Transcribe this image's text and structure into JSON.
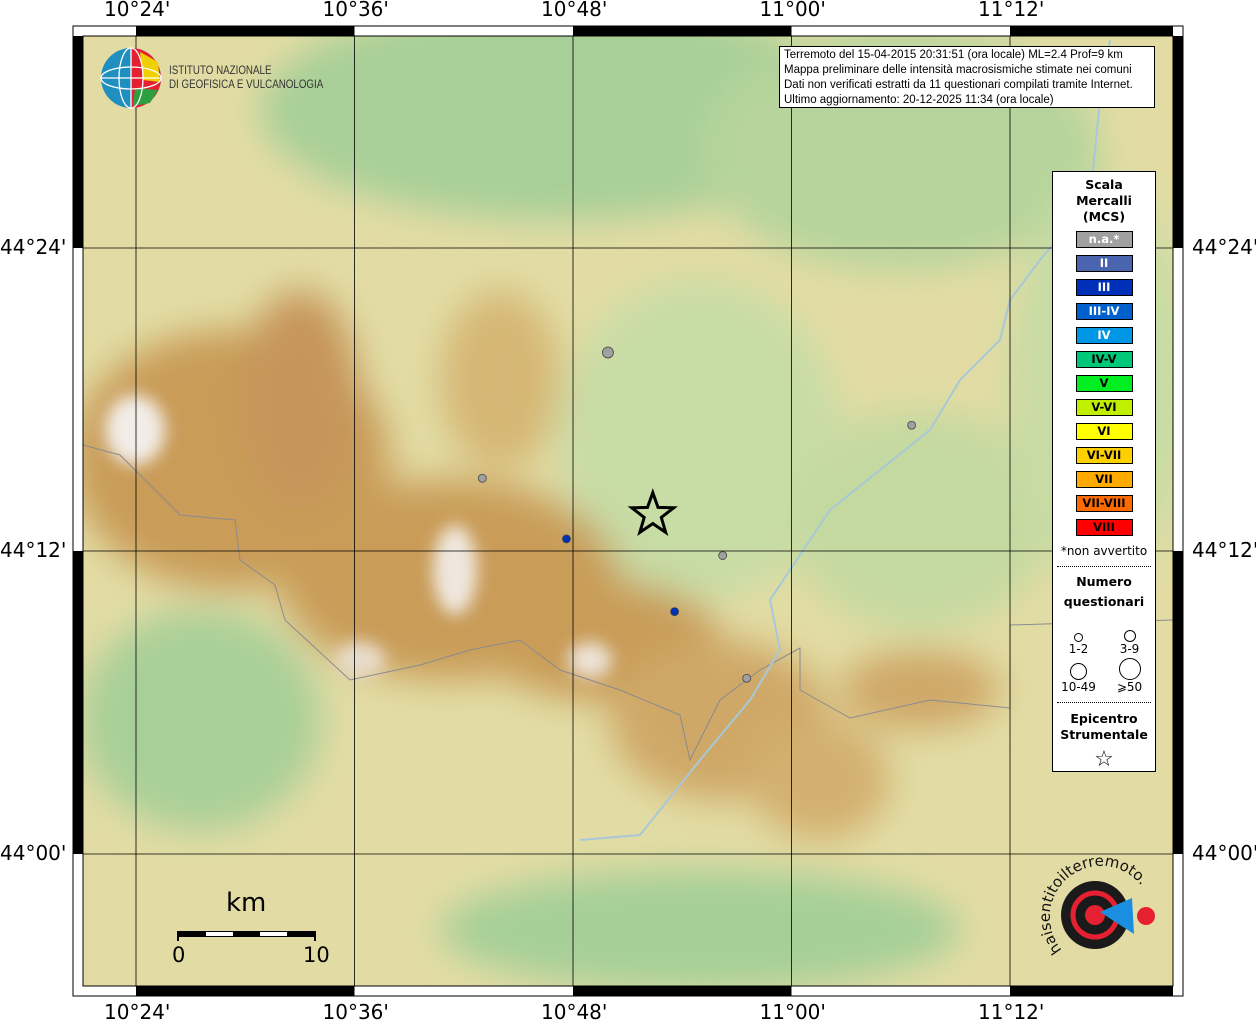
{
  "header": {
    "lines": [
      "Terremoto del 15-04-2015 20:31:51 (ora locale) ML=2.4 Prof=9 km",
      "Mappa preliminare delle intensità macrosismiche stimate nei comuni",
      "Dati non verificati estratti da 11 questionari compilati tramite Internet.",
      "Ultimo aggiornamento: 20-12-2025 11:34 (ora locale)"
    ]
  },
  "logos": {
    "ingv": {
      "line1": "ISTITUTO NAZIONALE",
      "line2": "DI GEOFISICA E VULCANOLOGIA"
    },
    "hsit": "www.haisentitoilterremoto.it"
  },
  "axes": {
    "lon_labels": [
      "10°24'",
      "10°36'",
      "10°48'",
      "11°00'",
      "11°12'"
    ],
    "lat_labels": [
      "44°24'",
      "44°12'",
      "44°00'"
    ],
    "lon_values": [
      10.4,
      10.6,
      10.8,
      11.0,
      11.2
    ],
    "lat_values": [
      44.4,
      44.2,
      44.0
    ]
  },
  "legend": {
    "title": [
      "Scala",
      "Mercalli",
      "(MCS)"
    ],
    "classes": [
      {
        "label": "n.a.*",
        "color": "#a0a0a0",
        "text": "#ffffff"
      },
      {
        "label": "II",
        "color": "#4a64b0",
        "text": "#ffffff"
      },
      {
        "label": "III",
        "color": "#0030b8",
        "text": "#ffffff"
      },
      {
        "label": "III-IV",
        "color": "#0060cc",
        "text": "#ffffff"
      },
      {
        "label": "IV",
        "color": "#0096e6",
        "text": "#ffffff"
      },
      {
        "label": "IV-V",
        "color": "#00c878",
        "text": "#000000"
      },
      {
        "label": "V",
        "color": "#00ee22",
        "text": "#000000"
      },
      {
        "label": "V-VI",
        "color": "#c0f000",
        "text": "#000000"
      },
      {
        "label": "VI",
        "color": "#ffff00",
        "text": "#000000"
      },
      {
        "label": "VI-VII",
        "color": "#ffd000",
        "text": "#000000"
      },
      {
        "label": "VII",
        "color": "#ffaa00",
        "text": "#000000"
      },
      {
        "label": "VII-VIII",
        "color": "#ff6a00",
        "text": "#000000"
      },
      {
        "label": "VIII",
        "color": "#ff0000",
        "text": "#000000"
      }
    ],
    "note": "*non avvertito",
    "questionari_title": [
      "Numero",
      "questionari"
    ],
    "questionari": [
      "1-2",
      "3-9",
      "10-49",
      "⩾50"
    ],
    "epicentro_title": [
      "Epicentro",
      "Strumentale"
    ]
  },
  "scale_bar": {
    "unit": "km",
    "start": "0",
    "end": "10"
  },
  "epicenter": {
    "lon": 10.873,
    "lat": 44.224
  },
  "points": [
    {
      "lon": 10.832,
      "lat": 44.331,
      "class": "n.a.*",
      "size": "3-9"
    },
    {
      "lon": 10.717,
      "lat": 44.248,
      "class": "n.a.*",
      "size": "1-2"
    },
    {
      "lon": 10.794,
      "lat": 44.208,
      "class": "III",
      "size": "1-2"
    },
    {
      "lon": 10.937,
      "lat": 44.197,
      "class": "n.a.*",
      "size": "1-2"
    },
    {
      "lon": 10.893,
      "lat": 44.16,
      "class": "III",
      "size": "1-2"
    },
    {
      "lon": 10.959,
      "lat": 44.116,
      "class": "n.a.*",
      "size": "1-2"
    },
    {
      "lon": 11.11,
      "lat": 44.283,
      "class": "n.a.*",
      "size": "1-2"
    }
  ]
}
